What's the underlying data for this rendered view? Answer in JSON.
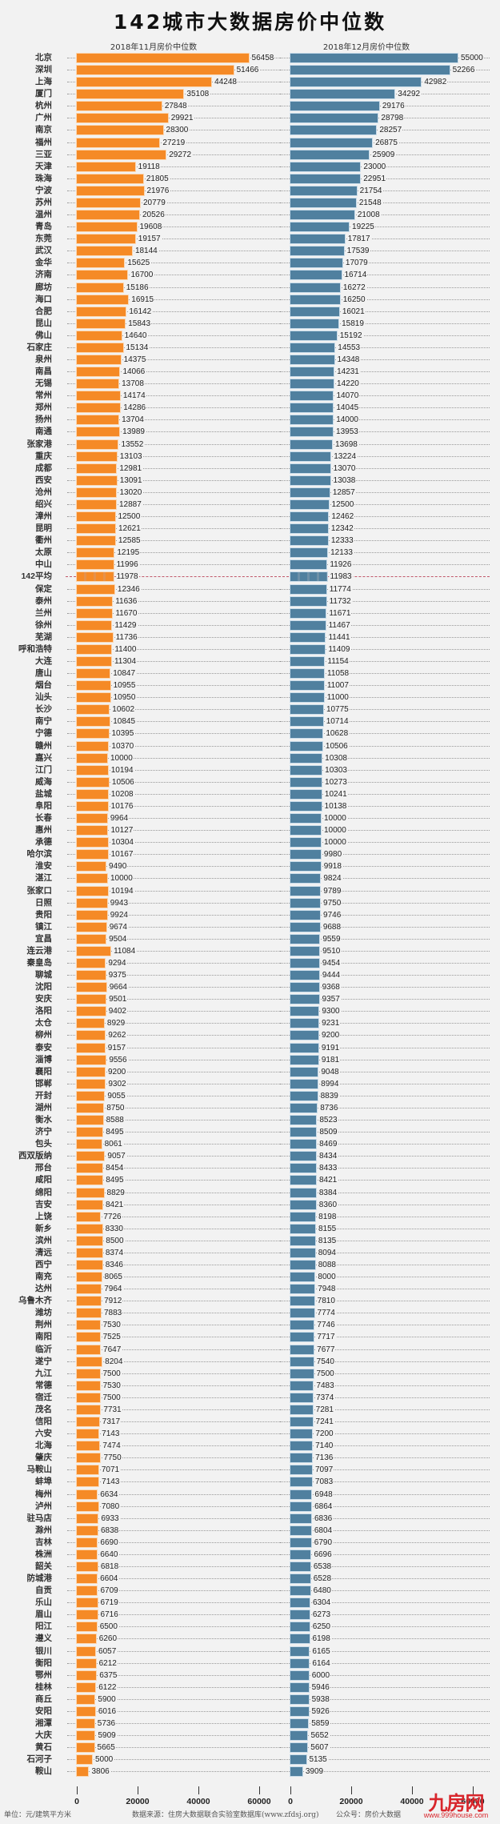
{
  "header": {
    "title": "142城市大数据房价中位数",
    "subtitle_nov": "2018年11月房价中位数",
    "subtitle_dec": "2018年12月房价中位数"
  },
  "footer": {
    "unit": "单位：元/建筑平方米",
    "source": "数据来源：住房大数据联合实验室数据库(www.zfdsj.org)",
    "wechat": "公众号：房价大数据"
  },
  "watermark": {
    "logo": "九房网",
    "url": "www.999house.com"
  },
  "colors": {
    "nov_bar": "#f58a26",
    "dec_bar": "#50809f",
    "average_line": "#b5334a",
    "background": "#f2f2f2"
  },
  "axis": {
    "nov_ticks": [
      "0",
      "20000",
      "40000",
      "60000"
    ],
    "dec_ticks": [
      "0",
      "20000",
      "40000",
      "60000"
    ]
  },
  "chart_data": {
    "type": "bar",
    "orientation": "horizontal",
    "title": "142城市大数据房价中位数",
    "xlabel": "单位：元/建筑平方米",
    "ylabel": "",
    "xlim": [
      0,
      60000
    ],
    "grid": false,
    "legend_position": "panel titles above each panel",
    "average_label": "142平均",
    "categories": [
      "北京",
      "深圳",
      "上海",
      "厦门",
      "杭州",
      "广州",
      "南京",
      "福州",
      "三亚",
      "天津",
      "珠海",
      "宁波",
      "苏州",
      "温州",
      "青岛",
      "东莞",
      "武汉",
      "金华",
      "济南",
      "廊坊",
      "海口",
      "合肥",
      "昆山",
      "佛山",
      "石家庄",
      "泉州",
      "南昌",
      "无锡",
      "常州",
      "郑州",
      "扬州",
      "南通",
      "张家港",
      "重庆",
      "成都",
      "西安",
      "沧州",
      "绍兴",
      "漳州",
      "昆明",
      "衢州",
      "太原",
      "中山",
      "142平均",
      "保定",
      "泰州",
      "兰州",
      "徐州",
      "芜湖",
      "呼和浩特",
      "大连",
      "唐山",
      "烟台",
      "汕头",
      "长沙",
      "南宁",
      "宁德",
      "赣州",
      "嘉兴",
      "江门",
      "威海",
      "盐城",
      "阜阳",
      "长春",
      "惠州",
      "承德",
      "哈尔滨",
      "淮安",
      "湛江",
      "张家口",
      "日照",
      "贵阳",
      "镇江",
      "宜昌",
      "连云港",
      "秦皇岛",
      "聊城",
      "沈阳",
      "安庆",
      "洛阳",
      "太仓",
      "柳州",
      "泰安",
      "淄博",
      "襄阳",
      "邯郸",
      "开封",
      "湖州",
      "衡水",
      "济宁",
      "包头",
      "西双版纳",
      "邢台",
      "咸阳",
      "绵阳",
      "吉安",
      "上饶",
      "新乡",
      "滨州",
      "清远",
      "西宁",
      "南充",
      "达州",
      "乌鲁木齐",
      "潍坊",
      "荆州",
      "南阳",
      "临沂",
      "遂宁",
      "九江",
      "常德",
      "宿迁",
      "茂名",
      "信阳",
      "六安",
      "北海",
      "肇庆",
      "马鞍山",
      "蚌埠",
      "梅州",
      "泸州",
      "驻马店",
      "滁州",
      "吉林",
      "株洲",
      "韶关",
      "防城港",
      "自贡",
      "乐山",
      "眉山",
      "阳江",
      "遵义",
      "银川",
      "衡阳",
      "鄂州",
      "桂林",
      "商丘",
      "安阳",
      "湘潭",
      "大庆",
      "黄石",
      "石河子",
      "鞍山"
    ],
    "series": [
      {
        "name": "2018年11月房价中位数",
        "values": [
          56458,
          51466,
          44248,
          35108,
          27848,
          29921,
          28300,
          27219,
          29272,
          19118,
          21805,
          21976,
          20779,
          20526,
          19608,
          19157,
          18144,
          15625,
          16700,
          15186,
          16915,
          16142,
          15843,
          14640,
          15134,
          14375,
          14066,
          13708,
          14174,
          14286,
          13704,
          13989,
          13552,
          13103,
          12981,
          13091,
          13020,
          12887,
          12500,
          12621,
          12585,
          12195,
          11996,
          11978,
          12346,
          11636,
          11670,
          11429,
          11736,
          11400,
          11304,
          10847,
          10955,
          10950,
          10602,
          10845,
          10395,
          10370,
          10000,
          10194,
          10506,
          10208,
          10176,
          9964,
          10127,
          10304,
          10167,
          9490,
          10000,
          10194,
          9943,
          9924,
          9674,
          9504,
          11084,
          9294,
          9375,
          9664,
          9501,
          9402,
          8929,
          9262,
          9157,
          9556,
          9200,
          9302,
          9055,
          8750,
          8588,
          8495,
          8061,
          9057,
          8454,
          8495,
          8829,
          8421,
          7726,
          8330,
          8500,
          8374,
          8346,
          8065,
          7964,
          7912,
          7883,
          7530,
          7525,
          7647,
          8204,
          7500,
          7530,
          7500,
          7731,
          7317,
          7143,
          7474,
          7750,
          7071,
          7143,
          6634,
          7080,
          6933,
          6838,
          6690,
          6640,
          6818,
          6604,
          6709,
          6719,
          6716,
          6500,
          6260,
          6057,
          6212,
          6375,
          6122,
          5900,
          6016,
          5736,
          5909,
          5665,
          5000,
          3806
        ]
      },
      {
        "name": "2018年12月房价中位数",
        "values": [
          55000,
          52266,
          42982,
          34292,
          29176,
          28798,
          28257,
          26875,
          25909,
          23000,
          22951,
          21754,
          21548,
          21008,
          19225,
          17817,
          17539,
          17079,
          16714,
          16272,
          16250,
          16021,
          15819,
          15192,
          14553,
          14348,
          14231,
          14220,
          14070,
          14045,
          14000,
          13953,
          13698,
          13224,
          13070,
          13038,
          12857,
          12500,
          12462,
          12342,
          12333,
          12133,
          11926,
          11983,
          11774,
          11732,
          11671,
          11467,
          11441,
          11409,
          11154,
          11058,
          11007,
          11000,
          10775,
          10714,
          10628,
          10506,
          10308,
          10303,
          10273,
          10241,
          10138,
          10000,
          10000,
          10000,
          9980,
          9918,
          9824,
          9789,
          9750,
          9746,
          9688,
          9559,
          9510,
          9454,
          9444,
          9368,
          9357,
          9300,
          9231,
          9200,
          9191,
          9181,
          9048,
          8994,
          8839,
          8736,
          8523,
          8509,
          8469,
          8434,
          8433,
          8421,
          8384,
          8360,
          8198,
          8155,
          8135,
          8094,
          8088,
          8000,
          7948,
          7810,
          7774,
          7746,
          7717,
          7677,
          7540,
          7500,
          7483,
          7374,
          7281,
          7241,
          7200,
          7140,
          7136,
          7097,
          7083,
          6948,
          6864,
          6836,
          6804,
          6790,
          6696,
          6538,
          6528,
          6480,
          6304,
          6273,
          6250,
          6198,
          6165,
          6164,
          6000,
          5946,
          5938,
          5926,
          5859,
          5652,
          5607,
          5135,
          3909
        ]
      }
    ]
  }
}
